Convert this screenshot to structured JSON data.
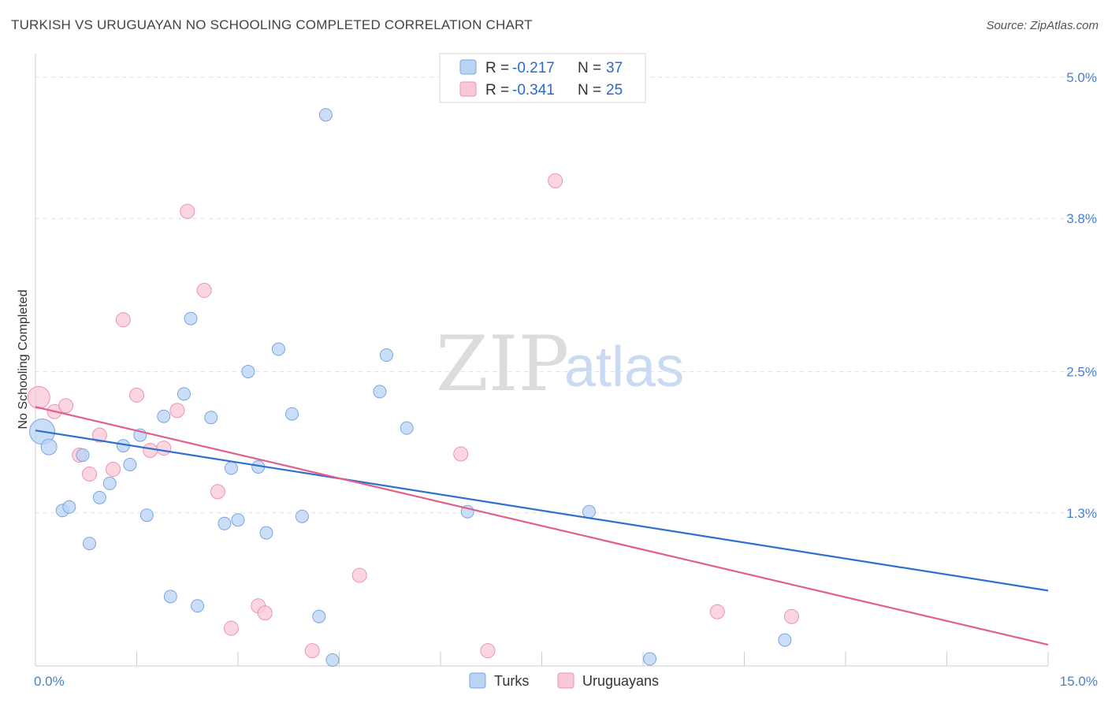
{
  "header": {
    "title": "TURKISH VS URUGUAYAN NO SCHOOLING COMPLETED CORRELATION CHART",
    "source": "Source: ZipAtlas.com"
  },
  "watermark": {
    "zip": "ZIP",
    "atlas": "atlas"
  },
  "legend": {
    "turks": {
      "r_label": "R =",
      "r_value": "-0.217",
      "n_label": "N =",
      "n_value": "37"
    },
    "uruguayans": {
      "r_label": "R =",
      "r_value": "-0.341",
      "n_label": "N =",
      "n_value": "25"
    }
  },
  "bottom_legend": {
    "turks": "Turks",
    "uruguayans": "Uruguayans"
  },
  "colors": {
    "turks_fill": "#b9d3f5",
    "turks_stroke": "#7aa6e0",
    "turks_line": "#2f6fce",
    "uru_fill": "#f9c8d7",
    "uru_stroke": "#eb94b0",
    "uru_line": "#e0608a"
  },
  "chart_data": {
    "type": "scatter",
    "title": "TURKISH VS URUGUAYAN NO SCHOOLING COMPLETED CORRELATION CHART",
    "xlabel": "",
    "ylabel": "No Schooling Completed",
    "xlim": [
      0,
      15
    ],
    "ylim": [
      0,
      5.2
    ],
    "x_ticks": [
      "0.0%",
      "15.0%"
    ],
    "y_ticks": [
      {
        "value": 1.3,
        "label": "1.3%"
      },
      {
        "value": 2.5,
        "label": "2.5%"
      },
      {
        "value": 3.8,
        "label": "3.8%"
      },
      {
        "value": 5.0,
        "label": "5.0%"
      }
    ],
    "grid": true,
    "legend_position": "top-center",
    "series": [
      {
        "name": "Turks",
        "points": [
          [
            0.1,
            1.99,
            16
          ],
          [
            0.2,
            1.86,
            10
          ],
          [
            0.4,
            1.32,
            8
          ],
          [
            0.5,
            1.35,
            8
          ],
          [
            0.7,
            1.79,
            8
          ],
          [
            0.8,
            1.04,
            8
          ],
          [
            0.95,
            1.43,
            8
          ],
          [
            1.1,
            1.55,
            8
          ],
          [
            1.3,
            1.87,
            8
          ],
          [
            1.4,
            1.71,
            8
          ],
          [
            1.55,
            1.96,
            8
          ],
          [
            1.65,
            1.28,
            8
          ],
          [
            1.9,
            2.12,
            8
          ],
          [
            2.0,
            0.59,
            8
          ],
          [
            2.2,
            2.31,
            8
          ],
          [
            2.3,
            2.95,
            8
          ],
          [
            2.4,
            0.51,
            8
          ],
          [
            2.6,
            2.11,
            8
          ],
          [
            2.8,
            1.21,
            8
          ],
          [
            2.9,
            1.68,
            8
          ],
          [
            3.0,
            1.24,
            8
          ],
          [
            3.15,
            2.5,
            8
          ],
          [
            3.3,
            1.69,
            8
          ],
          [
            3.42,
            1.13,
            8
          ],
          [
            3.6,
            2.69,
            8
          ],
          [
            3.8,
            2.14,
            8
          ],
          [
            3.95,
            1.27,
            8
          ],
          [
            4.2,
            0.42,
            8
          ],
          [
            4.3,
            4.68,
            8
          ],
          [
            4.4,
            0.05,
            8
          ],
          [
            5.1,
            2.33,
            8
          ],
          [
            5.2,
            2.64,
            8
          ],
          [
            5.5,
            2.02,
            8
          ],
          [
            6.4,
            1.31,
            8
          ],
          [
            8.2,
            1.31,
            8
          ],
          [
            9.1,
            0.06,
            8
          ],
          [
            11.1,
            0.22,
            8
          ]
        ]
      },
      {
        "name": "Uruguayans",
        "points": [
          [
            0.05,
            2.28,
            14
          ],
          [
            0.28,
            2.16,
            9
          ],
          [
            0.45,
            2.21,
            9
          ],
          [
            0.65,
            1.79,
            9
          ],
          [
            0.8,
            1.63,
            9
          ],
          [
            0.95,
            1.96,
            9
          ],
          [
            1.15,
            1.67,
            9
          ],
          [
            1.3,
            2.94,
            9
          ],
          [
            1.5,
            2.3,
            9
          ],
          [
            1.7,
            1.83,
            9
          ],
          [
            1.9,
            1.85,
            9
          ],
          [
            2.1,
            2.17,
            9
          ],
          [
            2.25,
            3.86,
            9
          ],
          [
            2.5,
            3.19,
            9
          ],
          [
            2.7,
            1.48,
            9
          ],
          [
            2.9,
            0.32,
            9
          ],
          [
            3.3,
            0.51,
            9
          ],
          [
            3.4,
            0.45,
            9
          ],
          [
            4.1,
            0.13,
            9
          ],
          [
            4.8,
            0.77,
            9
          ],
          [
            6.3,
            1.8,
            9
          ],
          [
            6.7,
            0.13,
            9
          ],
          [
            7.7,
            4.12,
            9
          ],
          [
            10.1,
            0.46,
            9
          ],
          [
            11.2,
            0.42,
            9
          ]
        ]
      }
    ],
    "trend_lines": [
      {
        "name": "Turks",
        "x": [
          0,
          15
        ],
        "y": [
          2.0,
          0.64
        ]
      },
      {
        "name": "Uruguayans",
        "x": [
          0,
          15
        ],
        "y": [
          2.2,
          0.18
        ]
      }
    ]
  }
}
